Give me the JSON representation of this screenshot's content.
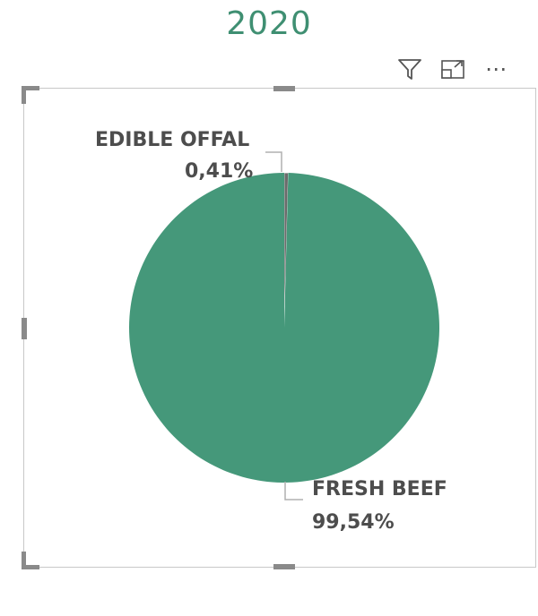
{
  "visual": {
    "title": "2020",
    "title_color": "#3f8f72"
  },
  "toolbar": {
    "icons": [
      "filter-icon",
      "focus-mode-icon",
      "more-options-icon"
    ],
    "more_glyph": "⋯"
  },
  "chart_data": {
    "type": "pie",
    "title": "2020",
    "slices": [
      {
        "label": "EDIBLE OFFAL",
        "percent_label": "0,41%",
        "value": 0.41,
        "color": "#6b6b6b"
      },
      {
        "label": "FRESH BEEF",
        "percent_label": "99,54%",
        "value": 99.54,
        "color": "#45987a"
      }
    ],
    "legend": "none"
  }
}
